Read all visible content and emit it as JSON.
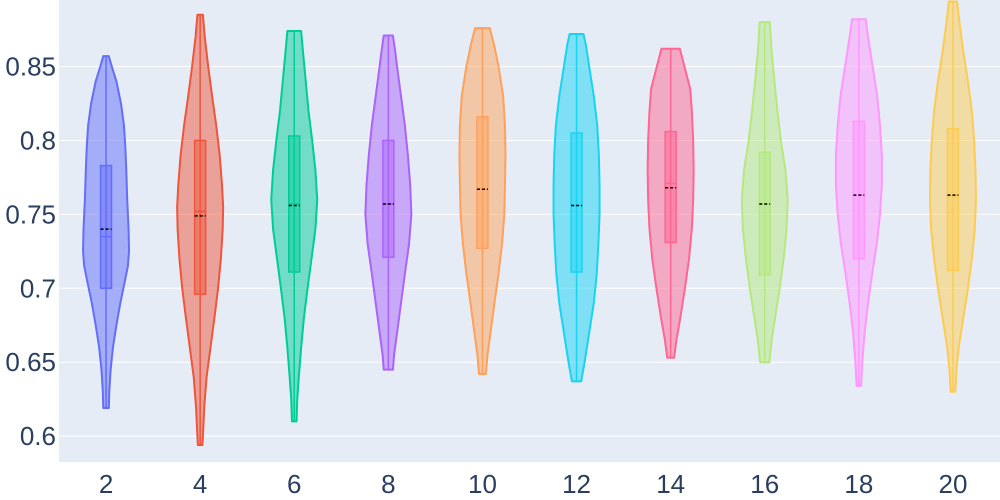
{
  "chart_data": {
    "type": "violin",
    "title": "",
    "xlabel": "",
    "ylabel": "",
    "ylim": [
      0.5825,
      0.895
    ],
    "grid": true,
    "legend": "none",
    "colors": {
      "plot_bg": "#e5ecf6",
      "grid": "#ffffff",
      "tick_text": "#2a3f5f",
      "mean_line": "#000000"
    },
    "yticks": [
      {
        "value": 0.6,
        "label": "0.6"
      },
      {
        "value": 0.65,
        "label": "0.65"
      },
      {
        "value": 0.7,
        "label": "0.7"
      },
      {
        "value": 0.75,
        "label": "0.75"
      },
      {
        "value": 0.8,
        "label": "0.8"
      },
      {
        "value": 0.85,
        "label": "0.85"
      }
    ],
    "categories": [
      "2",
      "4",
      "6",
      "8",
      "10",
      "12",
      "14",
      "16",
      "18",
      "20"
    ],
    "series": [
      {
        "category": "2",
        "color": "#636efa",
        "min": 0.619,
        "q1": 0.7,
        "median": 0.735,
        "mean": 0.74,
        "q3": 0.783,
        "max": 0.857,
        "density": [
          [
            0.619,
            0.12
          ],
          [
            0.63,
            0.14
          ],
          [
            0.645,
            0.2
          ],
          [
            0.66,
            0.3
          ],
          [
            0.675,
            0.45
          ],
          [
            0.69,
            0.62
          ],
          [
            0.705,
            0.82
          ],
          [
            0.715,
            0.95
          ],
          [
            0.725,
            1.0
          ],
          [
            0.74,
            0.98
          ],
          [
            0.76,
            0.92
          ],
          [
            0.78,
            0.88
          ],
          [
            0.795,
            0.84
          ],
          [
            0.81,
            0.78
          ],
          [
            0.825,
            0.65
          ],
          [
            0.84,
            0.45
          ],
          [
            0.85,
            0.25
          ],
          [
            0.857,
            0.12
          ]
        ]
      },
      {
        "category": "4",
        "color": "#ef553b",
        "min": 0.594,
        "q1": 0.696,
        "median": 0.752,
        "mean": 0.749,
        "q3": 0.8,
        "max": 0.885,
        "density": [
          [
            0.594,
            0.1
          ],
          [
            0.6,
            0.12
          ],
          [
            0.62,
            0.18
          ],
          [
            0.64,
            0.28
          ],
          [
            0.66,
            0.45
          ],
          [
            0.68,
            0.62
          ],
          [
            0.7,
            0.78
          ],
          [
            0.72,
            0.9
          ],
          [
            0.74,
            0.98
          ],
          [
            0.755,
            1.0
          ],
          [
            0.77,
            0.95
          ],
          [
            0.79,
            0.85
          ],
          [
            0.81,
            0.7
          ],
          [
            0.83,
            0.52
          ],
          [
            0.85,
            0.35
          ],
          [
            0.87,
            0.2
          ],
          [
            0.885,
            0.12
          ]
        ]
      },
      {
        "category": "6",
        "color": "#00cc96",
        "min": 0.61,
        "q1": 0.711,
        "median": 0.757,
        "mean": 0.756,
        "q3": 0.803,
        "max": 0.874,
        "density": [
          [
            0.61,
            0.1
          ],
          [
            0.625,
            0.13
          ],
          [
            0.64,
            0.2
          ],
          [
            0.66,
            0.3
          ],
          [
            0.68,
            0.42
          ],
          [
            0.7,
            0.58
          ],
          [
            0.72,
            0.75
          ],
          [
            0.74,
            0.92
          ],
          [
            0.76,
            1.0
          ],
          [
            0.78,
            0.92
          ],
          [
            0.8,
            0.78
          ],
          [
            0.82,
            0.62
          ],
          [
            0.84,
            0.5
          ],
          [
            0.86,
            0.38
          ],
          [
            0.874,
            0.3
          ]
        ]
      },
      {
        "category": "8",
        "color": "#ab63fa",
        "min": 0.645,
        "q1": 0.721,
        "median": 0.757,
        "mean": 0.757,
        "q3": 0.8,
        "max": 0.871,
        "density": [
          [
            0.645,
            0.2
          ],
          [
            0.655,
            0.25
          ],
          [
            0.67,
            0.38
          ],
          [
            0.69,
            0.55
          ],
          [
            0.71,
            0.72
          ],
          [
            0.73,
            0.9
          ],
          [
            0.75,
            1.0
          ],
          [
            0.77,
            0.95
          ],
          [
            0.79,
            0.85
          ],
          [
            0.81,
            0.72
          ],
          [
            0.83,
            0.55
          ],
          [
            0.85,
            0.38
          ],
          [
            0.86,
            0.3
          ],
          [
            0.871,
            0.2
          ]
        ]
      },
      {
        "category": "10",
        "color": "#ffa15a",
        "min": 0.642,
        "q1": 0.727,
        "median": 0.767,
        "mean": 0.767,
        "q3": 0.816,
        "max": 0.876,
        "density": [
          [
            0.642,
            0.15
          ],
          [
            0.655,
            0.22
          ],
          [
            0.67,
            0.35
          ],
          [
            0.69,
            0.52
          ],
          [
            0.71,
            0.7
          ],
          [
            0.73,
            0.85
          ],
          [
            0.75,
            0.95
          ],
          [
            0.77,
            0.98
          ],
          [
            0.79,
            1.0
          ],
          [
            0.81,
            0.98
          ],
          [
            0.83,
            0.9
          ],
          [
            0.85,
            0.7
          ],
          [
            0.865,
            0.5
          ],
          [
            0.876,
            0.32
          ]
        ]
      },
      {
        "category": "12",
        "color": "#19d3f3",
        "min": 0.637,
        "q1": 0.711,
        "median": 0.756,
        "mean": 0.756,
        "q3": 0.805,
        "max": 0.872,
        "density": [
          [
            0.637,
            0.2
          ],
          [
            0.65,
            0.35
          ],
          [
            0.67,
            0.55
          ],
          [
            0.69,
            0.75
          ],
          [
            0.71,
            0.88
          ],
          [
            0.73,
            0.95
          ],
          [
            0.75,
            1.0
          ],
          [
            0.77,
            1.0
          ],
          [
            0.79,
            0.97
          ],
          [
            0.81,
            0.9
          ],
          [
            0.83,
            0.75
          ],
          [
            0.85,
            0.55
          ],
          [
            0.865,
            0.4
          ],
          [
            0.872,
            0.3
          ]
        ]
      },
      {
        "category": "14",
        "color": "#ff6692",
        "min": 0.653,
        "q1": 0.731,
        "median": 0.771,
        "mean": 0.768,
        "q3": 0.806,
        "max": 0.862,
        "density": [
          [
            0.653,
            0.15
          ],
          [
            0.665,
            0.25
          ],
          [
            0.68,
            0.42
          ],
          [
            0.7,
            0.62
          ],
          [
            0.72,
            0.8
          ],
          [
            0.74,
            0.92
          ],
          [
            0.76,
            0.98
          ],
          [
            0.78,
            1.0
          ],
          [
            0.8,
            0.98
          ],
          [
            0.82,
            0.92
          ],
          [
            0.835,
            0.85
          ],
          [
            0.85,
            0.6
          ],
          [
            0.862,
            0.4
          ]
        ]
      },
      {
        "category": "16",
        "color": "#b6e880",
        "min": 0.65,
        "q1": 0.709,
        "median": 0.757,
        "mean": 0.757,
        "q3": 0.792,
        "max": 0.88,
        "density": [
          [
            0.65,
            0.2
          ],
          [
            0.665,
            0.3
          ],
          [
            0.68,
            0.45
          ],
          [
            0.7,
            0.65
          ],
          [
            0.72,
            0.82
          ],
          [
            0.74,
            0.95
          ],
          [
            0.76,
            1.0
          ],
          [
            0.78,
            0.9
          ],
          [
            0.8,
            0.7
          ],
          [
            0.82,
            0.55
          ],
          [
            0.84,
            0.42
          ],
          [
            0.86,
            0.3
          ],
          [
            0.88,
            0.22
          ]
        ]
      },
      {
        "category": "18",
        "color": "#ff97ff",
        "min": 0.634,
        "q1": 0.72,
        "median": 0.763,
        "mean": 0.763,
        "q3": 0.813,
        "max": 0.882,
        "density": [
          [
            0.634,
            0.1
          ],
          [
            0.65,
            0.15
          ],
          [
            0.67,
            0.25
          ],
          [
            0.69,
            0.4
          ],
          [
            0.71,
            0.58
          ],
          [
            0.73,
            0.78
          ],
          [
            0.75,
            0.92
          ],
          [
            0.77,
            1.0
          ],
          [
            0.79,
            1.0
          ],
          [
            0.81,
            0.92
          ],
          [
            0.83,
            0.8
          ],
          [
            0.85,
            0.6
          ],
          [
            0.87,
            0.4
          ],
          [
            0.882,
            0.3
          ]
        ]
      },
      {
        "category": "20",
        "color": "#fecb52",
        "min": 0.63,
        "q1": 0.712,
        "median": 0.763,
        "mean": 0.763,
        "q3": 0.808,
        "max": 0.894,
        "density": [
          [
            0.63,
            0.1
          ],
          [
            0.645,
            0.15
          ],
          [
            0.66,
            0.25
          ],
          [
            0.68,
            0.45
          ],
          [
            0.7,
            0.65
          ],
          [
            0.72,
            0.82
          ],
          [
            0.74,
            0.95
          ],
          [
            0.76,
            1.0
          ],
          [
            0.78,
            0.98
          ],
          [
            0.8,
            0.92
          ],
          [
            0.82,
            0.82
          ],
          [
            0.84,
            0.65
          ],
          [
            0.86,
            0.45
          ],
          [
            0.88,
            0.28
          ],
          [
            0.894,
            0.18
          ]
        ]
      }
    ]
  }
}
